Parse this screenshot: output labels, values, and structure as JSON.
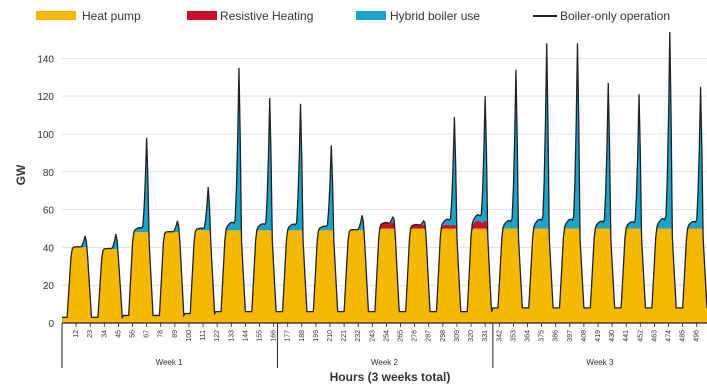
{
  "chart_data": {
    "type": "area",
    "xlabel": "Hours (3 weeks total)",
    "ylabel": "GW",
    "ylim": [
      0,
      155
    ],
    "xlim": [
      1,
      504
    ],
    "yticks": [
      "0",
      "20",
      "40",
      "60",
      "80",
      "100",
      "120",
      "140"
    ],
    "xticks": [
      "12",
      "23",
      "34",
      "45",
      "56",
      "67",
      "78",
      "89",
      "100",
      "111",
      "122",
      "133",
      "144",
      "155",
      "166",
      "177",
      "188",
      "199",
      "210",
      "221",
      "232",
      "243",
      "254",
      "265",
      "276",
      "287",
      "298",
      "309",
      "320",
      "331",
      "342",
      "353",
      "364",
      "375",
      "386",
      "397",
      "408",
      "419",
      "430",
      "441",
      "452",
      "463",
      "474",
      "485",
      "496"
    ],
    "weeks": [
      "Week 1",
      "Week 2",
      "Week 3"
    ],
    "grid": true,
    "legend_position": "top",
    "legend": [
      "Heat pump",
      "Resistive Heating",
      "Hybrid boiler use",
      "Boiler-only operation"
    ],
    "colors": {
      "heat_pump": "#f5b800",
      "resistive": "#c8102e",
      "hybrid": "#1ba3c9",
      "boiler_only": "#222222"
    },
    "days": [
      {
        "day": 1,
        "heat_pump_peak": 40,
        "resistive_peak": 0,
        "hybrid_peak": 45,
        "boiler_only_peak": 46,
        "night_low": 3
      },
      {
        "day": 2,
        "heat_pump_peak": 39,
        "resistive_peak": 0,
        "hybrid_peak": 47,
        "boiler_only_peak": 47,
        "night_low": 3
      },
      {
        "day": 3,
        "heat_pump_peak": 48,
        "resistive_peak": 0,
        "hybrid_peak": 97,
        "boiler_only_peak": 98,
        "night_low": 4
      },
      {
        "day": 4,
        "heat_pump_peak": 48,
        "resistive_peak": 0,
        "hybrid_peak": 53,
        "boiler_only_peak": 54,
        "night_low": 4
      },
      {
        "day": 5,
        "heat_pump_peak": 49,
        "resistive_peak": 0,
        "hybrid_peak": 71,
        "boiler_only_peak": 72,
        "night_low": 5
      },
      {
        "day": 6,
        "heat_pump_peak": 49,
        "resistive_peak": 0,
        "hybrid_peak": 134,
        "boiler_only_peak": 135,
        "night_low": 6
      },
      {
        "day": 7,
        "heat_pump_peak": 49,
        "resistive_peak": 0,
        "hybrid_peak": 118,
        "boiler_only_peak": 119,
        "night_low": 6
      },
      {
        "day": 8,
        "heat_pump_peak": 49,
        "resistive_peak": 0,
        "hybrid_peak": 114,
        "boiler_only_peak": 116,
        "night_low": 6
      },
      {
        "day": 9,
        "heat_pump_peak": 49,
        "resistive_peak": 0,
        "hybrid_peak": 93,
        "boiler_only_peak": 94,
        "night_low": 6
      },
      {
        "day": 10,
        "heat_pump_peak": 49,
        "resistive_peak": 0,
        "hybrid_peak": 56,
        "boiler_only_peak": 57,
        "night_low": 6
      },
      {
        "day": 11,
        "heat_pump_peak": 50,
        "resistive_peak": 53,
        "hybrid_peak": 53,
        "boiler_only_peak": 53,
        "night_low": 6
      },
      {
        "day": 12,
        "heat_pump_peak": 50,
        "resistive_peak": 52,
        "hybrid_peak": 52,
        "boiler_only_peak": 52,
        "night_low": 6
      },
      {
        "day": 13,
        "heat_pump_peak": 50,
        "resistive_peak": 52,
        "hybrid_peak": 106,
        "boiler_only_peak": 107,
        "night_low": 6
      },
      {
        "day": 14,
        "heat_pump_peak": 50,
        "resistive_peak": 54,
        "hybrid_peak": 115,
        "boiler_only_peak": 116,
        "night_low": 6
      },
      {
        "day": 15,
        "heat_pump_peak": 50,
        "resistive_peak": 0,
        "hybrid_peak": 132,
        "boiler_only_peak": 134,
        "night_low": 8
      },
      {
        "day": 16,
        "heat_pump_peak": 50,
        "resistive_peak": 0,
        "hybrid_peak": 146,
        "boiler_only_peak": 148,
        "night_low": 8
      },
      {
        "day": 17,
        "heat_pump_peak": 50,
        "resistive_peak": 0,
        "hybrid_peak": 147,
        "boiler_only_peak": 148,
        "night_low": 8
      },
      {
        "day": 18,
        "heat_pump_peak": 50,
        "resistive_peak": 0,
        "hybrid_peak": 126,
        "boiler_only_peak": 127,
        "night_low": 8
      },
      {
        "day": 19,
        "heat_pump_peak": 50,
        "resistive_peak": 0,
        "hybrid_peak": 120,
        "boiler_only_peak": 121,
        "night_low": 8
      },
      {
        "day": 20,
        "heat_pump_peak": 50,
        "resistive_peak": 0,
        "hybrid_peak": 153,
        "boiler_only_peak": 154,
        "night_low": 8
      },
      {
        "day": 21,
        "heat_pump_peak": 50,
        "resistive_peak": 0,
        "hybrid_peak": 124,
        "boiler_only_peak": 125,
        "night_low": 8
      }
    ]
  }
}
